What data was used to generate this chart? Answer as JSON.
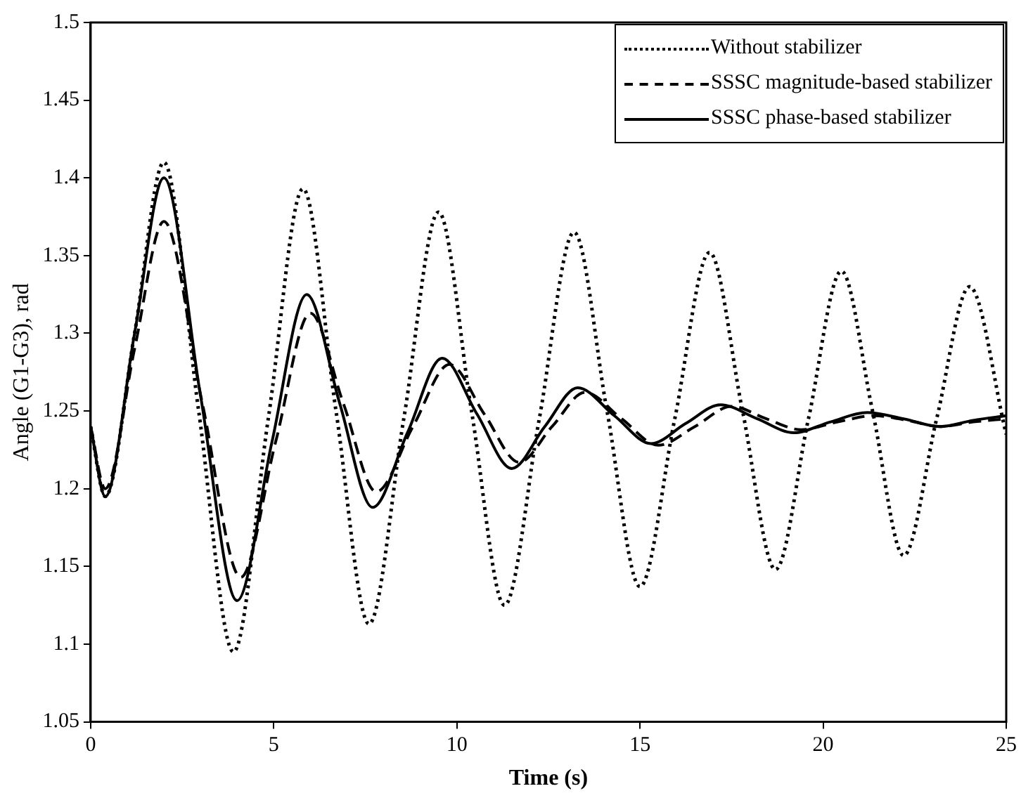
{
  "chart_data": {
    "type": "line",
    "xlabel": "Time (s)",
    "ylabel": "Angle (G1-G3), rad",
    "xlim": [
      0,
      25
    ],
    "xticks": [
      0,
      5,
      10,
      15,
      20,
      25
    ],
    "ylim": [
      1.05,
      1.5
    ],
    "yticks": [
      1.05,
      1.1,
      1.15,
      1.2,
      1.25,
      1.3,
      1.35,
      1.4,
      1.45,
      1.5
    ],
    "grid": false,
    "legend": "top right",
    "marker": "none",
    "series": [
      {
        "name": "Without stabilizer",
        "color": "#000000",
        "line_style": "dotted",
        "x": [
          0,
          0.4,
          1.2,
          2.0,
          2.95,
          3.9,
          4.85,
          5.8,
          6.7,
          7.6,
          8.55,
          9.5,
          10.4,
          11.3,
          12.25,
          13.2,
          14.1,
          15.0,
          15.95,
          16.9,
          17.8,
          18.7,
          19.6,
          20.5,
          21.35,
          22.2,
          23.1,
          24.0,
          25
        ],
        "values": [
          1.24,
          1.195,
          1.3,
          1.41,
          1.25,
          1.095,
          1.245,
          1.393,
          1.25,
          1.113,
          1.245,
          1.378,
          1.25,
          1.125,
          1.245,
          1.365,
          1.25,
          1.137,
          1.245,
          1.352,
          1.25,
          1.148,
          1.245,
          1.34,
          1.25,
          1.157,
          1.245,
          1.33,
          1.235
        ]
      },
      {
        "name": "SSSC magnitude-based stabilizer",
        "color": "#000000",
        "line_style": "dashed",
        "x": [
          0,
          0.4,
          1.2,
          2.0,
          3.05,
          4.1,
          5.05,
          6.0,
          6.9,
          7.8,
          8.8,
          9.8,
          10.75,
          11.7,
          12.6,
          13.5,
          14.5,
          15.5,
          16.5,
          17.5,
          18.45,
          19.4,
          20.4,
          21.4,
          22.3,
          23.2,
          24.1,
          25
        ],
        "values": [
          1.24,
          1.2,
          1.29,
          1.372,
          1.255,
          1.143,
          1.23,
          1.313,
          1.255,
          1.198,
          1.24,
          1.28,
          1.248,
          1.217,
          1.24,
          1.262,
          1.245,
          1.228,
          1.24,
          1.253,
          1.245,
          1.238,
          1.243,
          1.247,
          1.244,
          1.24,
          1.243,
          1.245
        ]
      },
      {
        "name": "SSSC phase-based stabilizer",
        "color": "#000000",
        "line_style": "solid",
        "x": [
          0,
          0.4,
          1.2,
          2.0,
          3.0,
          4.0,
          4.95,
          5.9,
          6.8,
          7.7,
          8.65,
          9.6,
          10.55,
          11.5,
          12.4,
          13.3,
          14.3,
          15.3,
          16.25,
          17.2,
          18.2,
          19.2,
          20.2,
          21.2,
          22.2,
          23.2,
          24.1,
          25
        ],
        "values": [
          1.24,
          1.195,
          1.3,
          1.4,
          1.26,
          1.128,
          1.23,
          1.325,
          1.255,
          1.188,
          1.236,
          1.284,
          1.248,
          1.213,
          1.24,
          1.265,
          1.247,
          1.229,
          1.242,
          1.254,
          1.245,
          1.236,
          1.243,
          1.249,
          1.245,
          1.24,
          1.244,
          1.247
        ]
      }
    ]
  }
}
